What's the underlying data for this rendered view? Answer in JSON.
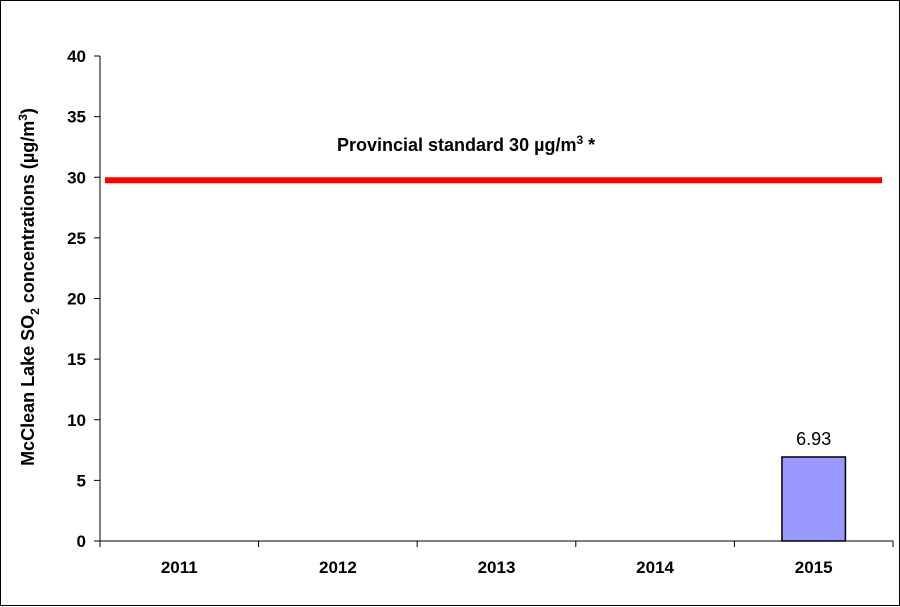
{
  "chart_data": {
    "type": "bar",
    "categories": [
      "2011",
      "2012",
      "2013",
      "2014",
      "2015"
    ],
    "values": [
      null,
      null,
      null,
      null,
      6.93
    ],
    "data_labels": [
      "",
      "",
      "",
      "",
      "6.93"
    ],
    "ylabel": {
      "prefix": "McClean Lake  SO",
      "sub": "2",
      "middle": " concentrations (µg/m",
      "sup": "3",
      "suffix": ")"
    },
    "ylim": [
      0,
      40
    ],
    "yticks": [
      0,
      5,
      10,
      15,
      20,
      25,
      30,
      35,
      40
    ],
    "grid": false,
    "reference_line": {
      "value": 30,
      "label_main": "Provincial standard 30 µg/m",
      "label_sup": "3",
      "label_suffix": " *",
      "color": "#ff0000"
    },
    "bar_color": "#9999ff",
    "bar_edge_color": "#000000"
  }
}
